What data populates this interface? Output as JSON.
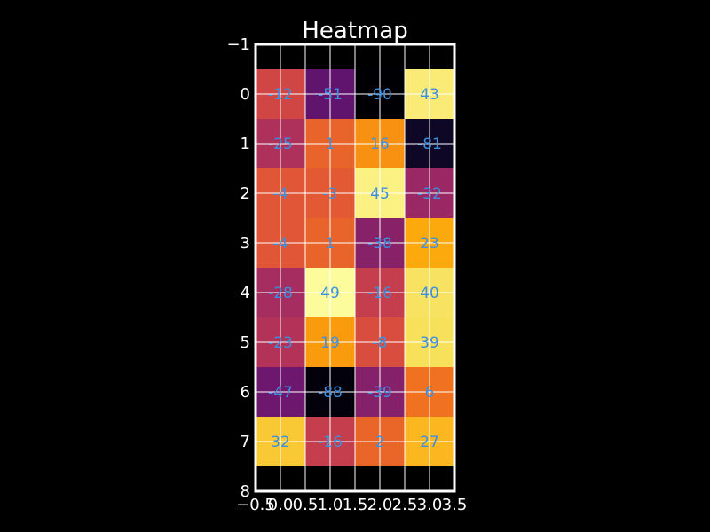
{
  "chart_data": {
    "type": "heatmap",
    "title": "Heatmap",
    "xlabel": "",
    "ylabel": "",
    "xlim": [
      -0.5,
      3.5
    ],
    "ylim": [
      8,
      -1
    ],
    "x_ticks": [
      "−0.5",
      "0.0",
      "0.5",
      "1.0",
      "1.5",
      "2.0",
      "2.5",
      "3.0",
      "3.5"
    ],
    "y_ticks": [
      "−1",
      "0",
      "1",
      "2",
      "3",
      "4",
      "5",
      "6",
      "7",
      "8"
    ],
    "grid": true,
    "colormap": "inferno",
    "value_range": [
      -90,
      50
    ],
    "label_color": "#3d8fe0",
    "rows": [
      0,
      1,
      2,
      3,
      4,
      5,
      6,
      7
    ],
    "columns": [
      0,
      1,
      2,
      3
    ],
    "values": [
      [
        -12,
        -51,
        -90,
        43
      ],
      [
        -25,
        1,
        16,
        -81
      ],
      [
        -4,
        -3,
        45,
        -32
      ],
      [
        -4,
        1,
        -38,
        23
      ],
      [
        -28,
        49,
        -16,
        40
      ],
      [
        -23,
        19,
        -8,
        39
      ],
      [
        -47,
        -88,
        -39,
        6
      ],
      [
        32,
        -16,
        2,
        27
      ]
    ]
  }
}
